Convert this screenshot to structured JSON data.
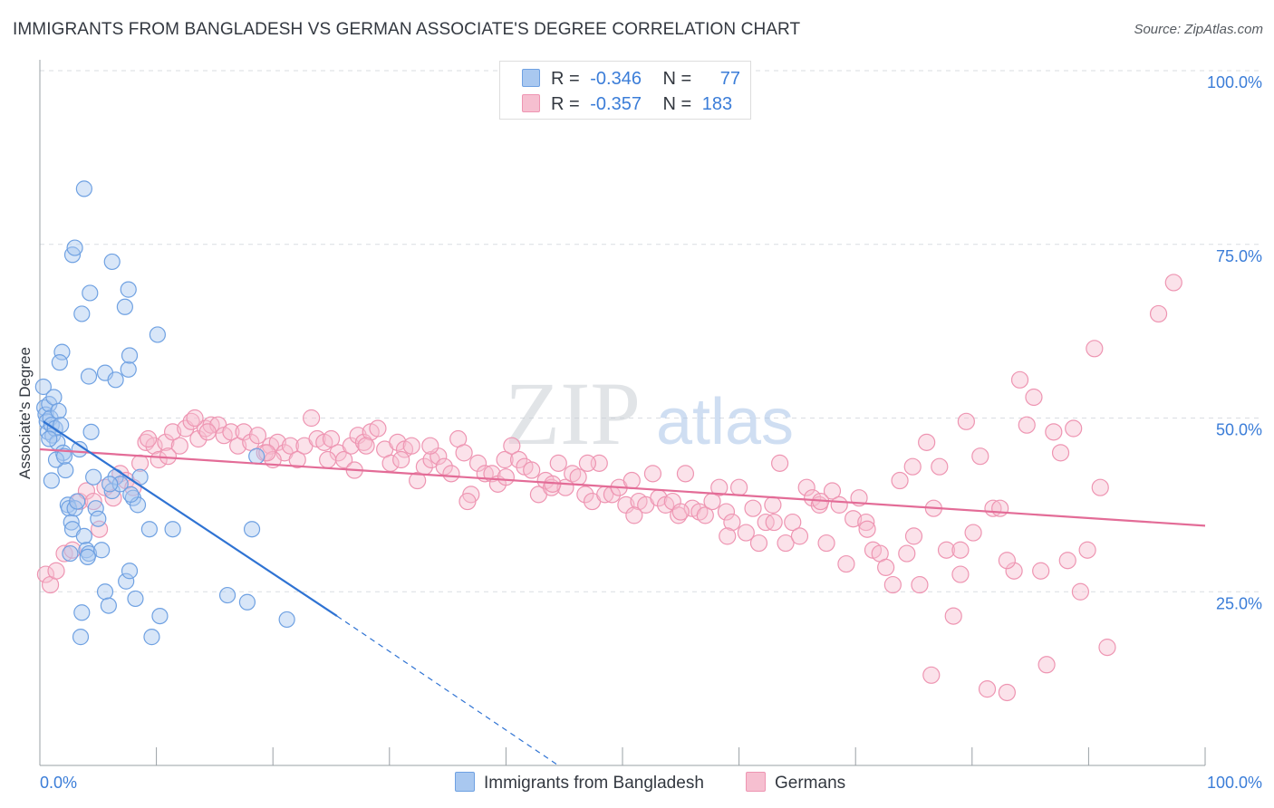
{
  "title": "IMMIGRANTS FROM BANGLADESH VS GERMAN ASSOCIATE'S DEGREE CORRELATION CHART",
  "source": "Source: ZipAtlas.com",
  "watermark": {
    "zip": "ZIP",
    "atlas": "atlas"
  },
  "legend_top": {
    "rows": [
      {
        "r_label": "R =",
        "r_value": "-0.346",
        "n_label": "N =",
        "n_value": "77"
      },
      {
        "r_label": "R =",
        "r_value": "-0.357",
        "n_label": "N =",
        "n_value": "183"
      }
    ]
  },
  "legend_bottom": {
    "series1": "Immigrants from Bangladesh",
    "series2": "Germans"
  },
  "colors": {
    "blue_fill": "#a9c8f0",
    "blue_stroke": "#6fa1e2",
    "blue_line": "#2f73d3",
    "pink_fill": "#f6bfd0",
    "pink_stroke": "#ee95b2",
    "pink_line": "#e36c97",
    "axis_text": "#3b7dd8",
    "grid": "#d9dde2"
  },
  "chart_data": {
    "type": "scatter",
    "title": "IMMIGRANTS FROM BANGLADESH VS GERMAN ASSOCIATE'S DEGREE CORRELATION CHART",
    "xlabel": "",
    "ylabel": "Associate's Degree",
    "xlim": [
      0,
      100
    ],
    "ylim": [
      0,
      100
    ],
    "x_tick_labels": [
      "0.0%",
      "100.0%"
    ],
    "y_tick_labels": [
      "100.0%",
      "75.0%",
      "50.0%",
      "25.0%"
    ],
    "y_ticks": [
      100,
      75,
      50,
      25
    ],
    "series": [
      {
        "name": "Immigrants from Bangladesh",
        "r": -0.346,
        "n": 77,
        "trend": {
          "x0": 0.3,
          "y0": 49.5,
          "x1": 25.5,
          "y1": 21.5,
          "dash_x1": 44.5,
          "dash_y1": 0
        },
        "points": [
          [
            0.3,
            54.5
          ],
          [
            0.4,
            51.5
          ],
          [
            0.5,
            50.5
          ],
          [
            0.6,
            49.5
          ],
          [
            0.7,
            48.0
          ],
          [
            0.8,
            52.0
          ],
          [
            0.9,
            50.0
          ],
          [
            1.0,
            49.0
          ],
          [
            1.1,
            47.5
          ],
          [
            1.2,
            53.0
          ],
          [
            1.3,
            48.5
          ],
          [
            1.5,
            46.5
          ],
          [
            1.6,
            51.0
          ],
          [
            1.8,
            49.0
          ],
          [
            2.0,
            45.0
          ],
          [
            2.2,
            42.5
          ],
          [
            2.4,
            37.5
          ],
          [
            2.5,
            37.0
          ],
          [
            2.7,
            35.0
          ],
          [
            2.8,
            34.0
          ],
          [
            3.0,
            37.0
          ],
          [
            3.2,
            38.0
          ],
          [
            3.4,
            45.5
          ],
          [
            3.6,
            22.0
          ],
          [
            3.8,
            33.0
          ],
          [
            4.0,
            31.0
          ],
          [
            4.2,
            30.5
          ],
          [
            4.4,
            48.0
          ],
          [
            4.6,
            41.5
          ],
          [
            4.8,
            37.0
          ],
          [
            5.0,
            35.5
          ],
          [
            5.3,
            31.0
          ],
          [
            5.6,
            25.0
          ],
          [
            5.9,
            23.0
          ],
          [
            6.2,
            39.5
          ],
          [
            6.5,
            41.5
          ],
          [
            6.9,
            40.5
          ],
          [
            7.4,
            26.5
          ],
          [
            7.7,
            28.0
          ],
          [
            8.0,
            38.5
          ],
          [
            8.2,
            24.0
          ],
          [
            8.4,
            37.5
          ],
          [
            8.6,
            41.5
          ],
          [
            9.4,
            34.0
          ],
          [
            9.6,
            18.5
          ],
          [
            10.3,
            21.5
          ],
          [
            11.4,
            34.0
          ],
          [
            1.9,
            59.5
          ],
          [
            1.7,
            58.0
          ],
          [
            4.2,
            56.0
          ],
          [
            5.6,
            56.5
          ],
          [
            6.5,
            55.5
          ],
          [
            7.6,
            57.0
          ],
          [
            7.7,
            59.0
          ],
          [
            2.8,
            73.5
          ],
          [
            3.0,
            74.5
          ],
          [
            3.6,
            65.0
          ],
          [
            4.3,
            68.0
          ],
          [
            6.2,
            72.5
          ],
          [
            7.3,
            66.0
          ],
          [
            7.6,
            68.5
          ],
          [
            10.1,
            62.0
          ],
          [
            3.8,
            83.0
          ],
          [
            0.8,
            47.0
          ],
          [
            1.4,
            44.0
          ],
          [
            2.1,
            44.5
          ],
          [
            3.5,
            18.5
          ],
          [
            6.0,
            40.5
          ],
          [
            7.8,
            39.0
          ],
          [
            16.1,
            24.5
          ],
          [
            17.8,
            23.5
          ],
          [
            18.2,
            34.0
          ],
          [
            18.6,
            44.5
          ],
          [
            21.2,
            21.0
          ],
          [
            1.0,
            41.0
          ],
          [
            2.6,
            30.5
          ],
          [
            4.1,
            30.0
          ]
        ]
      },
      {
        "name": "Germans",
        "r": -0.357,
        "n": 183,
        "trend": {
          "x0": 0,
          "y0": 45.5,
          "x1": 100,
          "y1": 34.5
        },
        "points": [
          [
            0.5,
            27.5
          ],
          [
            0.9,
            26.0
          ],
          [
            1.4,
            28.0
          ],
          [
            2.1,
            30.5
          ],
          [
            2.8,
            31.0
          ],
          [
            3.4,
            38.0
          ],
          [
            4.0,
            39.5
          ],
          [
            4.6,
            38.0
          ],
          [
            5.1,
            34.0
          ],
          [
            5.6,
            40.0
          ],
          [
            6.3,
            38.5
          ],
          [
            6.9,
            42.0
          ],
          [
            7.4,
            41.0
          ],
          [
            8.0,
            40.0
          ],
          [
            8.6,
            43.5
          ],
          [
            9.1,
            46.5
          ],
          [
            9.8,
            46.0
          ],
          [
            10.2,
            44.0
          ],
          [
            10.8,
            46.5
          ],
          [
            11.4,
            48.0
          ],
          [
            12.0,
            46.0
          ],
          [
            12.5,
            48.5
          ],
          [
            13.0,
            49.5
          ],
          [
            13.6,
            47.0
          ],
          [
            14.2,
            48.5
          ],
          [
            14.7,
            49.0
          ],
          [
            15.3,
            49.0
          ],
          [
            15.8,
            47.5
          ],
          [
            16.4,
            48.0
          ],
          [
            17.0,
            46.0
          ],
          [
            17.5,
            48.0
          ],
          [
            18.1,
            46.5
          ],
          [
            18.7,
            47.5
          ],
          [
            19.3,
            45.0
          ],
          [
            19.8,
            46.0
          ],
          [
            20.4,
            46.5
          ],
          [
            21.0,
            45.0
          ],
          [
            21.5,
            46.0
          ],
          [
            22.1,
            44.0
          ],
          [
            22.7,
            46.0
          ],
          [
            23.3,
            50.0
          ],
          [
            23.8,
            47.0
          ],
          [
            24.4,
            46.5
          ],
          [
            25.0,
            47.0
          ],
          [
            25.6,
            45.0
          ],
          [
            26.1,
            44.0
          ],
          [
            26.7,
            46.0
          ],
          [
            27.3,
            47.5
          ],
          [
            27.8,
            46.5
          ],
          [
            28.4,
            48.0
          ],
          [
            29.0,
            48.5
          ],
          [
            29.6,
            45.5
          ],
          [
            30.1,
            43.5
          ],
          [
            30.7,
            46.5
          ],
          [
            31.3,
            45.5
          ],
          [
            31.9,
            46.0
          ],
          [
            32.4,
            41.0
          ],
          [
            33.0,
            43.0
          ],
          [
            33.6,
            44.0
          ],
          [
            34.2,
            44.5
          ],
          [
            34.7,
            43.0
          ],
          [
            35.3,
            42.0
          ],
          [
            35.9,
            47.0
          ],
          [
            36.4,
            45.0
          ],
          [
            37.0,
            39.0
          ],
          [
            37.6,
            43.5
          ],
          [
            38.2,
            42.0
          ],
          [
            38.8,
            42.0
          ],
          [
            39.3,
            40.5
          ],
          [
            39.9,
            44.0
          ],
          [
            40.5,
            46.0
          ],
          [
            41.1,
            44.0
          ],
          [
            41.6,
            43.0
          ],
          [
            42.2,
            42.5
          ],
          [
            42.8,
            39.0
          ],
          [
            43.4,
            41.0
          ],
          [
            43.9,
            40.0
          ],
          [
            44.5,
            43.5
          ],
          [
            45.1,
            40.0
          ],
          [
            45.7,
            42.0
          ],
          [
            46.2,
            41.5
          ],
          [
            46.8,
            39.0
          ],
          [
            47.4,
            38.0
          ],
          [
            48.0,
            43.5
          ],
          [
            48.5,
            39.0
          ],
          [
            49.1,
            39.0
          ],
          [
            49.7,
            40.0
          ],
          [
            50.3,
            37.5
          ],
          [
            50.8,
            41.0
          ],
          [
            51.4,
            38.0
          ],
          [
            52.0,
            37.5
          ],
          [
            52.6,
            42.0
          ],
          [
            53.1,
            38.5
          ],
          [
            53.7,
            37.5
          ],
          [
            54.3,
            38.0
          ],
          [
            54.8,
            36.0
          ],
          [
            55.4,
            42.0
          ],
          [
            56.0,
            37.0
          ],
          [
            56.6,
            36.5
          ],
          [
            57.1,
            36.0
          ],
          [
            57.7,
            38.0
          ],
          [
            58.3,
            40.0
          ],
          [
            58.9,
            36.5
          ],
          [
            59.4,
            35.0
          ],
          [
            60.0,
            40.0
          ],
          [
            60.6,
            33.5
          ],
          [
            61.2,
            37.0
          ],
          [
            61.7,
            32.0
          ],
          [
            62.3,
            35.0
          ],
          [
            62.9,
            37.5
          ],
          [
            63.5,
            43.5
          ],
          [
            64.0,
            32.0
          ],
          [
            64.6,
            35.0
          ],
          [
            65.2,
            33.0
          ],
          [
            65.8,
            40.0
          ],
          [
            66.3,
            38.5
          ],
          [
            66.9,
            37.5
          ],
          [
            67.5,
            32.0
          ],
          [
            68.0,
            39.5
          ],
          [
            68.6,
            37.5
          ],
          [
            69.2,
            29.0
          ],
          [
            69.8,
            35.5
          ],
          [
            70.3,
            38.5
          ],
          [
            70.9,
            35.0
          ],
          [
            71.5,
            31.0
          ],
          [
            72.1,
            30.5
          ],
          [
            72.6,
            28.5
          ],
          [
            73.2,
            26.0
          ],
          [
            73.8,
            41.0
          ],
          [
            74.4,
            30.5
          ],
          [
            74.9,
            43.0
          ],
          [
            75.5,
            26.0
          ],
          [
            76.1,
            46.5
          ],
          [
            76.7,
            37.0
          ],
          [
            77.2,
            43.0
          ],
          [
            77.8,
            31.0
          ],
          [
            78.4,
            21.5
          ],
          [
            79.0,
            27.5
          ],
          [
            79.5,
            49.5
          ],
          [
            80.1,
            33.5
          ],
          [
            80.7,
            44.5
          ],
          [
            81.3,
            11.0
          ],
          [
            81.8,
            37.0
          ],
          [
            82.4,
            37.0
          ],
          [
            83.0,
            10.5
          ],
          [
            83.6,
            28.0
          ],
          [
            84.1,
            55.5
          ],
          [
            84.7,
            49.0
          ],
          [
            85.3,
            53.0
          ],
          [
            85.9,
            28.0
          ],
          [
            86.4,
            14.5
          ],
          [
            87.0,
            48.0
          ],
          [
            87.6,
            45.0
          ],
          [
            88.2,
            29.5
          ],
          [
            88.7,
            48.5
          ],
          [
            89.3,
            25.0
          ],
          [
            89.9,
            31.0
          ],
          [
            90.5,
            60.0
          ],
          [
            91.0,
            40.0
          ],
          [
            91.6,
            17.0
          ],
          [
            96.0,
            65.0
          ],
          [
            97.3,
            69.5
          ],
          [
            14.4,
            48.0
          ],
          [
            20.0,
            44.0
          ],
          [
            24.7,
            44.0
          ],
          [
            27.0,
            42.5
          ],
          [
            31.0,
            44.0
          ],
          [
            36.7,
            38.0
          ],
          [
            40.0,
            41.5
          ],
          [
            44.0,
            40.5
          ],
          [
            47.0,
            43.5
          ],
          [
            51.0,
            36.0
          ],
          [
            55.0,
            36.5
          ],
          [
            59.0,
            33.0
          ],
          [
            63.0,
            35.0
          ],
          [
            67.0,
            38.0
          ],
          [
            71.0,
            34.0
          ],
          [
            75.0,
            33.0
          ],
          [
            79.0,
            31.0
          ],
          [
            83.0,
            29.5
          ],
          [
            13.3,
            50.0
          ],
          [
            9.3,
            47.0
          ],
          [
            11.0,
            44.5
          ],
          [
            28.0,
            46.0
          ],
          [
            33.5,
            46.0
          ],
          [
            19.5,
            45.0
          ],
          [
            76.5,
            13.0
          ]
        ]
      }
    ]
  }
}
